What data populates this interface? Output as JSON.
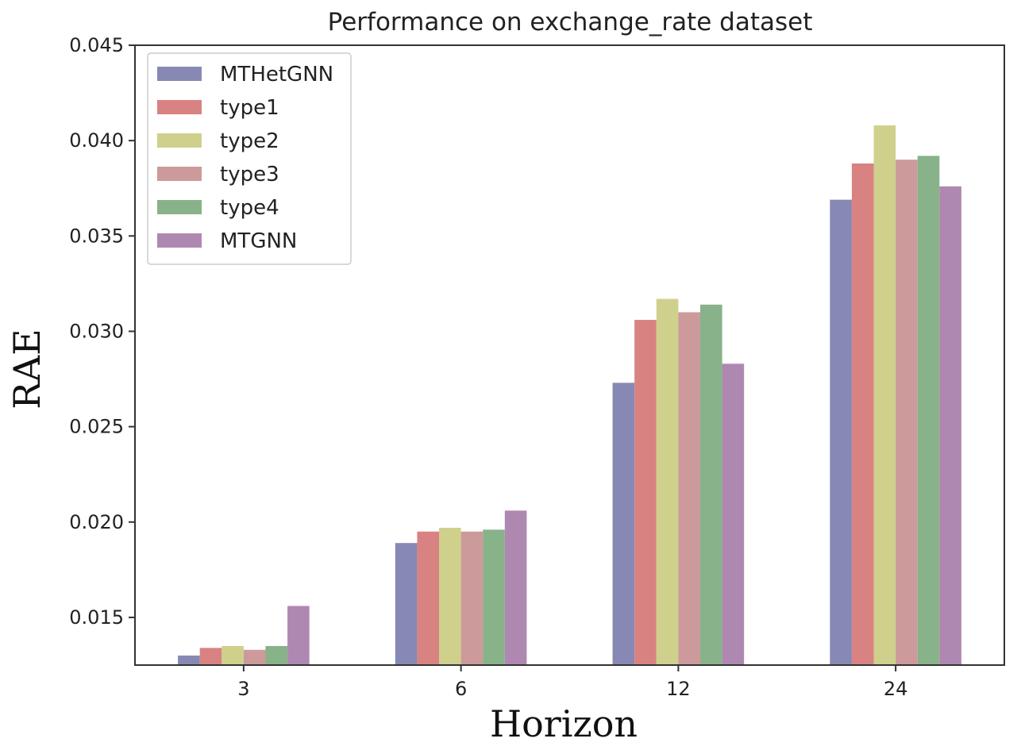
{
  "chart_data": {
    "type": "bar",
    "title": "Performance on exchange_rate dataset",
    "xlabel": "Horizon",
    "ylabel": "RAE",
    "categories": [
      "3",
      "6",
      "12",
      "24"
    ],
    "series": [
      {
        "name": "MTHetGNN",
        "color": "#8789b4",
        "values": [
          0.013,
          0.0189,
          0.0273,
          0.0369
        ]
      },
      {
        "name": "type1",
        "color": "#d88282",
        "values": [
          0.0134,
          0.0195,
          0.0306,
          0.0388
        ]
      },
      {
        "name": "type2",
        "color": "#cfd08c",
        "values": [
          0.0135,
          0.0197,
          0.0317,
          0.0408
        ]
      },
      {
        "name": "type3",
        "color": "#cc9a9a",
        "values": [
          0.0133,
          0.0195,
          0.031,
          0.039
        ]
      },
      {
        "name": "type4",
        "color": "#88b289",
        "values": [
          0.0135,
          0.0196,
          0.0314,
          0.0392
        ]
      },
      {
        "name": "MTGNN",
        "color": "#af88b1",
        "values": [
          0.0156,
          0.0206,
          0.0283,
          0.0376
        ]
      }
    ],
    "ylim": [
      0.0125,
      0.045
    ],
    "yticks": [
      "0.015",
      "0.020",
      "0.025",
      "0.030",
      "0.035",
      "0.040",
      "0.045"
    ],
    "grid": false,
    "legend_position": "top-left"
  }
}
